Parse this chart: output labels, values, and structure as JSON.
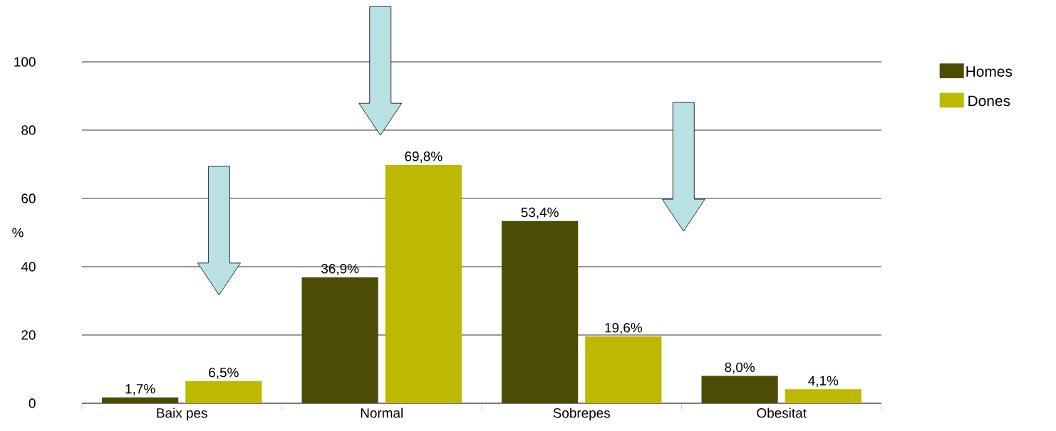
{
  "chart_data": {
    "type": "bar",
    "ylabel": "%",
    "categories": [
      "Baix pes",
      "Normal",
      "Sobrepes",
      "Obesitat"
    ],
    "series": [
      {
        "name": "Homes",
        "color": "#4d4c05",
        "values": [
          1.7,
          36.9,
          53.4,
          8.0
        ],
        "value_labels": [
          "1,7%",
          "36,9%",
          "53,4%",
          "8,0%"
        ]
      },
      {
        "name": "Dones",
        "color": "#bdb800",
        "values": [
          6.5,
          69.8,
          19.6,
          4.1
        ],
        "value_labels": [
          "6,5%",
          "69,8%",
          "19,6%",
          "4,1%"
        ]
      }
    ],
    "ylim": [
      0,
      100
    ],
    "yticks": [
      0,
      20,
      40,
      60,
      80,
      100
    ],
    "grid": "y",
    "legend": "top right"
  }
}
